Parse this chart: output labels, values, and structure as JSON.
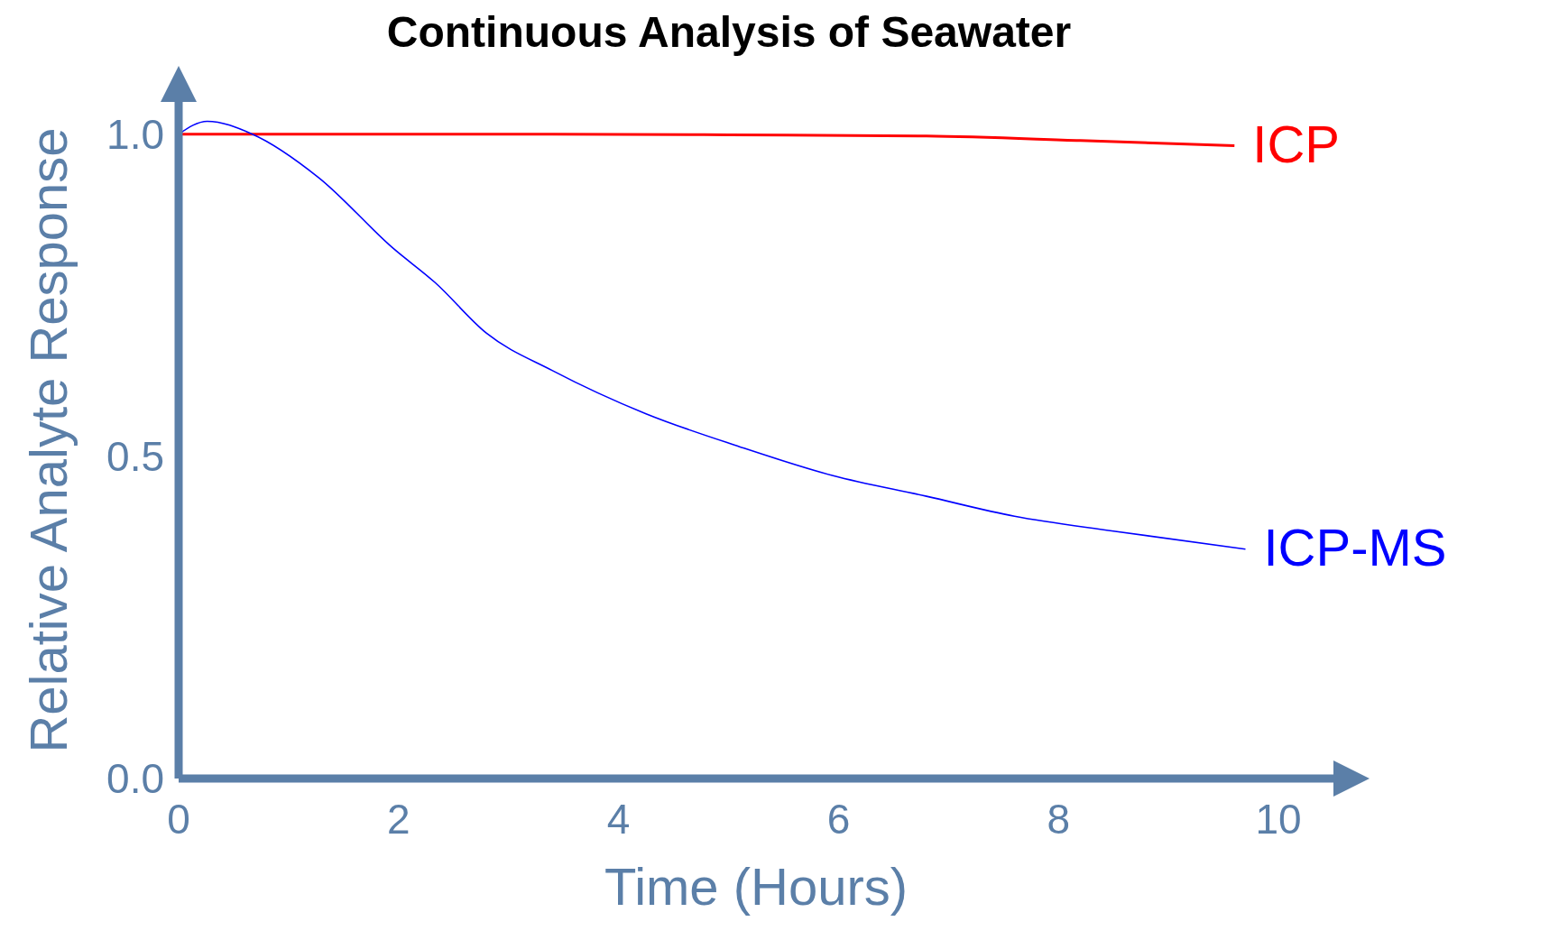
{
  "chart_data": {
    "type": "line",
    "title": "Continuous Analysis of Seawater",
    "xlabel": "Time (Hours)",
    "ylabel": "Relative Analyte Response",
    "xlim": [
      0,
      10.5
    ],
    "xticks": [
      0,
      2,
      4,
      6,
      8,
      10
    ],
    "ylim": [
      0,
      1.05
    ],
    "yticks": [
      {
        "value": 0,
        "label": "0.0"
      },
      {
        "value": 0.5,
        "label": "0.5"
      },
      {
        "value": 1,
        "label": "1.0"
      }
    ],
    "grid": false,
    "legend": false,
    "marker": "none",
    "line_style": "solid",
    "series": [
      {
        "name": "ICP",
        "color": "#ff0000",
        "x": [
          0,
          1,
          2,
          3.4,
          5,
          6.8,
          8.2,
          9.6
        ],
        "values": [
          1.0,
          1.0,
          1.0,
          1.0,
          0.999,
          0.997,
          0.99,
          0.982
        ]
      },
      {
        "name": "ICP-MS",
        "color": "#0000ff",
        "x": [
          0,
          0.26,
          0.67,
          1.27,
          1.95,
          2.33,
          2.8,
          3.4,
          4.25,
          5.1,
          5.95,
          6.8,
          7.6,
          8.5,
          9.7
        ],
        "values": [
          1.0,
          1.02,
          1.0,
          0.933,
          0.823,
          0.77,
          0.691,
          0.633,
          0.566,
          0.515,
          0.47,
          0.438,
          0.407,
          0.384,
          0.356
        ]
      }
    ]
  }
}
